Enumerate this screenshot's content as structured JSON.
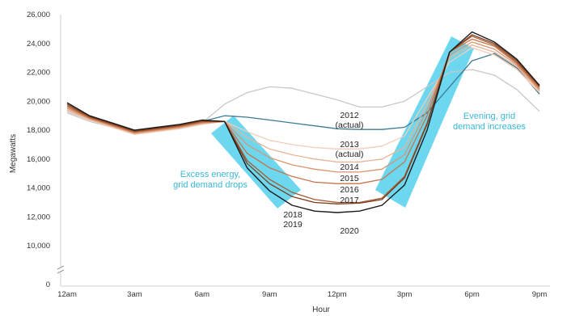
{
  "chart_data": {
    "type": "line",
    "xlabel": "Hour",
    "ylabel": "Megawatts",
    "x": [
      0,
      1,
      2,
      3,
      4,
      5,
      6,
      7,
      8,
      9,
      10,
      11,
      12,
      13,
      14,
      15,
      16,
      17,
      18,
      19,
      20,
      21
    ],
    "x_ticks": [
      {
        "value": 0,
        "label": "12am"
      },
      {
        "value": 3,
        "label": "3am"
      },
      {
        "value": 6,
        "label": "6am"
      },
      {
        "value": 9,
        "label": "9am"
      },
      {
        "value": 12,
        "label": "12pm"
      },
      {
        "value": 15,
        "label": "3pm"
      },
      {
        "value": 18,
        "label": "6pm"
      },
      {
        "value": 21,
        "label": "9pm"
      }
    ],
    "y_ticks": [
      {
        "value": 10000,
        "label": "10,000"
      },
      {
        "value": 12000,
        "label": "12,000"
      },
      {
        "value": 14000,
        "label": "14,000"
      },
      {
        "value": 16000,
        "label": "16,000"
      },
      {
        "value": 18000,
        "label": "18,000"
      },
      {
        "value": 20000,
        "label": "20,000"
      },
      {
        "value": 22000,
        "label": "22,000"
      },
      {
        "value": 24000,
        "label": "24,000"
      },
      {
        "value": 26000,
        "label": "26,000"
      }
    ],
    "y_zero_label": "0",
    "ylim": [
      9000,
      26000
    ],
    "y_axis_break": true,
    "grid": false,
    "series": [
      {
        "name": "2012 (actual)",
        "label_lines": [
          "2012",
          "(actual)"
        ],
        "color": "#c8c8c8",
        "values": [
          19200,
          18600,
          18200,
          17900,
          18100,
          18300,
          18500,
          19800,
          20600,
          21000,
          20900,
          20500,
          20100,
          19600,
          19600,
          20000,
          21000,
          22000,
          22200,
          21800,
          20800,
          19300
        ]
      },
      {
        "name": "2013 (actual)",
        "label_lines": [
          "2013",
          "(actual)"
        ],
        "color": "#3e7b95",
        "values": [
          19300,
          18700,
          18300,
          18000,
          18200,
          18300,
          18600,
          19000,
          18900,
          18700,
          18500,
          18300,
          18100,
          18050,
          18050,
          18200,
          19200,
          21000,
          22800,
          23300,
          22300,
          20500
        ]
      },
      {
        "name": "2014",
        "label_lines": [
          "2014"
        ],
        "color": "#f1cdb9",
        "values": [
          19300,
          18700,
          18200,
          17700,
          17900,
          18100,
          18400,
          18600,
          17900,
          17300,
          17000,
          16800,
          16700,
          16700,
          16900,
          17600,
          20200,
          22700,
          23700,
          23200,
          22200,
          20600
        ]
      },
      {
        "name": "2015",
        "label_lines": [
          "2015"
        ],
        "color": "#e7b497",
        "values": [
          19400,
          18750,
          18250,
          17750,
          17950,
          18150,
          18450,
          18600,
          17500,
          16700,
          16300,
          16000,
          15800,
          15800,
          16000,
          16800,
          19800,
          23000,
          23900,
          23400,
          22400,
          20700
        ]
      },
      {
        "name": "2016",
        "label_lines": [
          "2016"
        ],
        "color": "#d9946f",
        "values": [
          19500,
          18800,
          18300,
          17800,
          18000,
          18200,
          18500,
          18600,
          17000,
          16100,
          15600,
          15300,
          15100,
          15100,
          15300,
          16300,
          19400,
          23200,
          24100,
          23600,
          22500,
          20800
        ]
      },
      {
        "name": "2017",
        "label_lines": [
          "2017"
        ],
        "color": "#c5744b",
        "values": [
          19600,
          18850,
          18350,
          17850,
          18050,
          18250,
          18550,
          18600,
          16400,
          15400,
          14800,
          14400,
          14300,
          14300,
          14600,
          15800,
          19000,
          23400,
          24300,
          23800,
          22600,
          20900
        ]
      },
      {
        "name": "2018",
        "label_lines": [
          "2018"
        ],
        "color": "#a55a30",
        "values": [
          19700,
          18900,
          18400,
          17900,
          18100,
          18300,
          18600,
          18600,
          15900,
          14600,
          13700,
          13200,
          13000,
          13000,
          13300,
          14800,
          18500,
          23400,
          24500,
          23900,
          22700,
          21000
        ]
      },
      {
        "name": "2019",
        "label_lines": [
          "2019"
        ],
        "color": "#7b3e1e",
        "values": [
          19800,
          18950,
          18450,
          17950,
          18150,
          18350,
          18650,
          18600,
          15700,
          14300,
          13400,
          13000,
          12900,
          12950,
          13200,
          14700,
          18400,
          23400,
          24600,
          24000,
          22800,
          21050
        ]
      },
      {
        "name": "2020",
        "label_lines": [
          "2020"
        ],
        "color": "#1a1a1a",
        "values": [
          19900,
          19000,
          18500,
          18000,
          18200,
          18400,
          18700,
          18600,
          15400,
          13800,
          12800,
          12400,
          12300,
          12400,
          12800,
          14200,
          18000,
          23400,
          24800,
          24100,
          22900,
          21100
        ]
      }
    ],
    "annotations": [
      {
        "id": "excess",
        "lines": [
          "Excess energy,",
          "grid demand drops"
        ]
      },
      {
        "id": "evening",
        "lines": [
          "Evening, grid",
          "demand increases"
        ]
      }
    ]
  }
}
